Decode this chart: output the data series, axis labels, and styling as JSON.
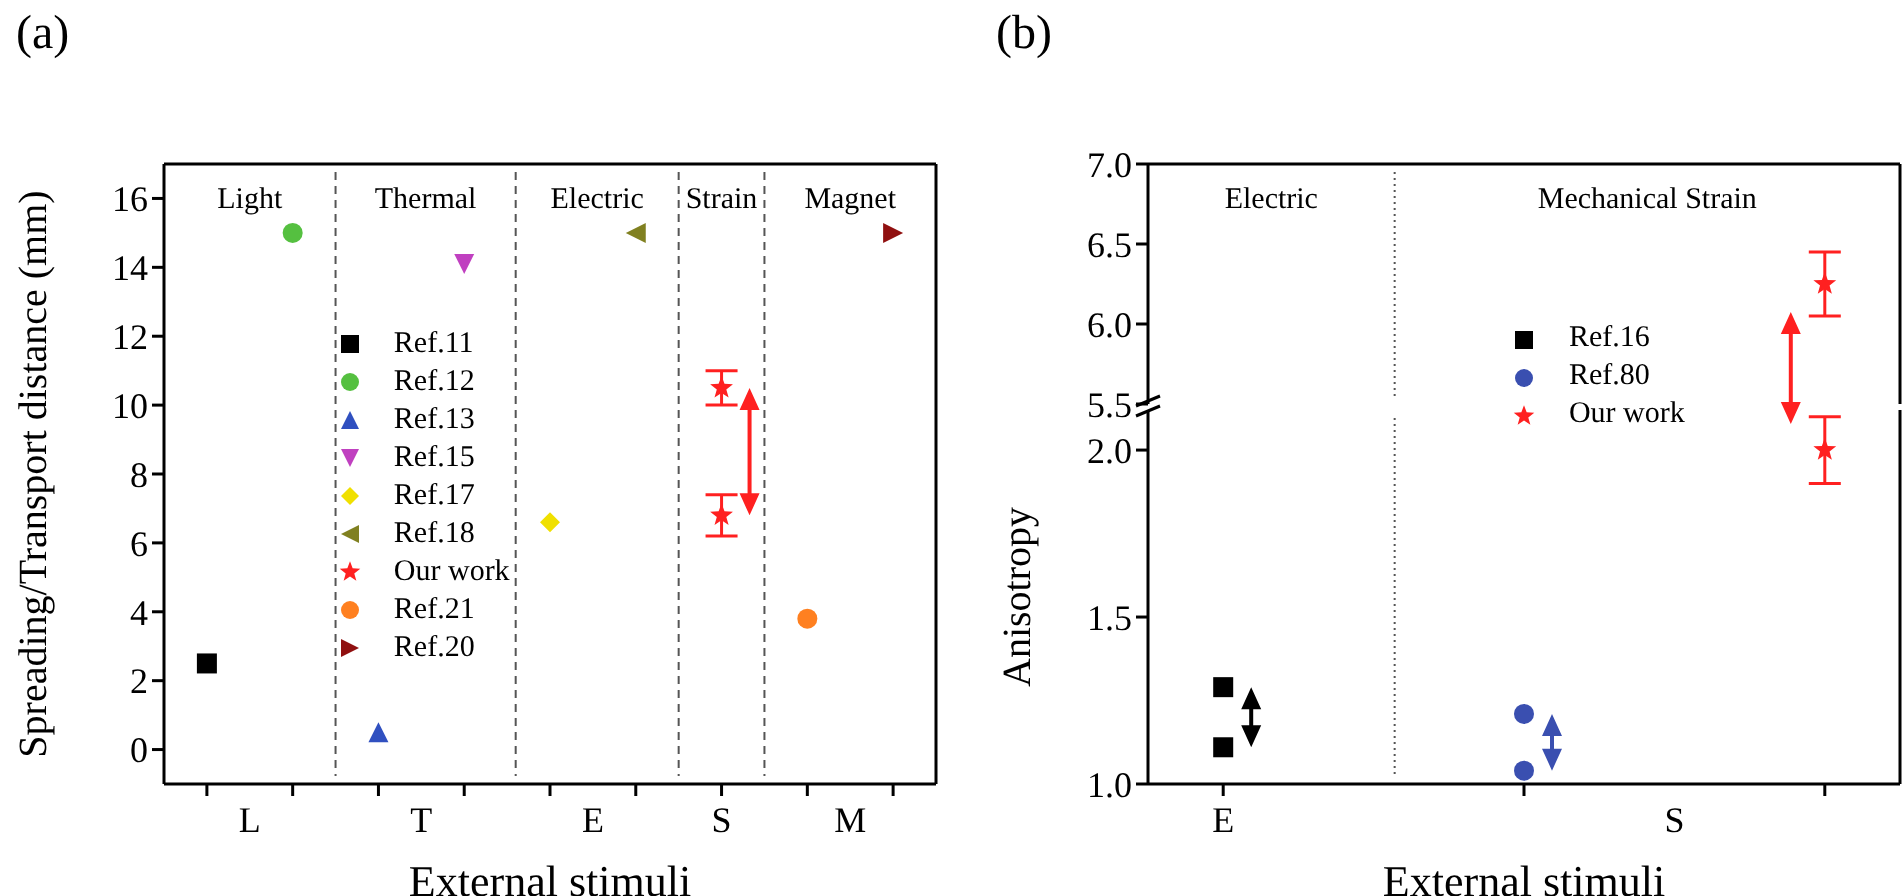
{
  "chart_data": [
    {
      "type": "scatter",
      "title": "(a)",
      "xlabel": "External stimuli",
      "ylabel": "Spreading/Transport distance (mm)",
      "categories": [
        null,
        "L",
        null,
        null,
        null,
        "T",
        null,
        null,
        null,
        "E",
        null,
        null,
        "S",
        null,
        null,
        "M",
        null
      ],
      "ylim": [
        -1,
        17
      ],
      "yticks": [
        0,
        2,
        4,
        6,
        8,
        10,
        12,
        14,
        16
      ],
      "legend": "center",
      "grid": "x",
      "annotations": [
        "Light",
        "Thermal",
        "Electric",
        "Strain",
        "Magnet"
      ],
      "series": [
        {
          "name": "Ref.11",
          "color": "#000000",
          "marker": "square",
          "values": [
            2.5,
            null,
            null,
            null,
            null,
            null,
            null,
            null,
            null,
            null,
            null,
            null,
            null,
            null,
            null,
            null,
            null
          ]
        },
        {
          "name": "Ref.12",
          "color": "#55c040",
          "marker": "circle",
          "values": [
            null,
            null,
            15,
            null,
            null,
            null,
            null,
            null,
            null,
            null,
            null,
            null,
            null,
            null,
            null,
            null,
            null
          ]
        },
        {
          "name": "Ref.13",
          "color": "#3050c0",
          "marker": "triangle",
          "values": [
            null,
            null,
            null,
            null,
            0.5,
            null,
            null,
            null,
            null,
            null,
            null,
            null,
            null,
            null,
            null,
            null,
            null
          ]
        },
        {
          "name": "Ref.15",
          "color": "#c040c0",
          "marker": "triangle-down",
          "values": [
            null,
            null,
            null,
            null,
            null,
            null,
            14.1,
            null,
            null,
            null,
            null,
            null,
            null,
            null,
            null,
            null,
            null
          ]
        },
        {
          "name": "Ref.17",
          "color": "#f0e000",
          "marker": "diamond",
          "values": [
            null,
            null,
            null,
            null,
            null,
            null,
            null,
            null,
            6.6,
            null,
            null,
            null,
            null,
            null,
            null,
            null,
            null
          ]
        },
        {
          "name": "Ref.18",
          "color": "#808020",
          "marker": "triangle-left",
          "values": [
            null,
            null,
            null,
            null,
            null,
            null,
            null,
            null,
            null,
            null,
            15,
            null,
            null,
            null,
            null,
            null,
            null
          ]
        },
        {
          "name": "Our work",
          "color": "#ff2020",
          "marker": "star",
          "values": [
            null,
            null,
            null,
            null,
            null,
            null,
            null,
            null,
            null,
            null,
            null,
            null,
            10.5,
            null,
            null,
            null,
            null
          ],
          "errors": [
            null,
            null,
            null,
            null,
            null,
            null,
            null,
            null,
            null,
            null,
            null,
            null,
            0.5,
            null,
            null,
            null,
            null
          ]
        },
        {
          "color": "#ff2020",
          "marker": "star",
          "values": [
            null,
            null,
            null,
            null,
            null,
            null,
            null,
            null,
            null,
            null,
            null,
            null,
            6.8,
            null,
            null,
            null,
            null
          ],
          "errors": [
            null,
            null,
            null,
            null,
            null,
            null,
            null,
            null,
            null,
            null,
            null,
            null,
            0.6,
            null,
            null,
            null,
            null
          ]
        },
        {
          "name": "Ref.21",
          "color": "#ff8020",
          "marker": "circle",
          "values": [
            null,
            null,
            null,
            null,
            null,
            null,
            null,
            null,
            null,
            null,
            null,
            null,
            null,
            null,
            3.8,
            null,
            null
          ]
        },
        {
          "name": "Ref.20",
          "color": "#901010",
          "marker": "triangle-right",
          "values": [
            null,
            null,
            null,
            null,
            null,
            null,
            null,
            null,
            null,
            null,
            null,
            null,
            null,
            null,
            null,
            null,
            15
          ]
        }
      ]
    },
    {
      "type": "scatter",
      "title": "(b)",
      "categories": [
        null,
        null,
        null,
        null,
        null
      ],
      "ylim": [
        5.5,
        7
      ],
      "yticks": [
        5.5,
        {
          "value": 6,
          "label": "6.0"
        },
        6.5,
        {
          "value": 7,
          "label": "7.0"
        }
      ],
      "tick_labels": "y",
      "annotations": [
        "Electric",
        "Mechanical Strain"
      ],
      "series": [
        {
          "color": "#ff2020",
          "marker": "star",
          "values": [
            null,
            null,
            null,
            null,
            6.25
          ],
          "errors": [
            null,
            null,
            null,
            null,
            0.2
          ]
        }
      ]
    },
    {
      "type": "scatter",
      "xlabel": "External stimuli",
      "ylabel": "Anisotropy",
      "categories": [
        "E",
        null,
        null,
        "S",
        null
      ],
      "ylim": [
        1,
        2.12
      ],
      "yticks": [
        {
          "value": 1,
          "label": "1.0"
        },
        1.5,
        {
          "value": 2,
          "label": "2.0"
        }
      ],
      "legend": "top",
      "series": [
        {
          "name": "Ref.16",
          "color": "#000000",
          "marker": "square",
          "values": [
            1.29,
            null,
            null,
            null,
            null
          ]
        },
        {
          "color": "#000000",
          "marker": "square",
          "values": [
            1.11,
            null,
            null,
            null,
            null
          ]
        },
        {
          "name": "Ref.80",
          "color": "#3a4fb0",
          "marker": "circle",
          "values": [
            null,
            null,
            1.21,
            null,
            null
          ]
        },
        {
          "color": "#3a4fb0",
          "marker": "circle",
          "values": [
            null,
            null,
            1.04,
            null,
            null
          ]
        },
        {
          "name": "Our work",
          "color": "#ff2020",
          "marker": "star",
          "values": [
            null,
            null,
            null,
            null,
            2.0
          ],
          "errors": [
            null,
            null,
            null,
            null,
            0.1
          ]
        }
      ]
    }
  ]
}
